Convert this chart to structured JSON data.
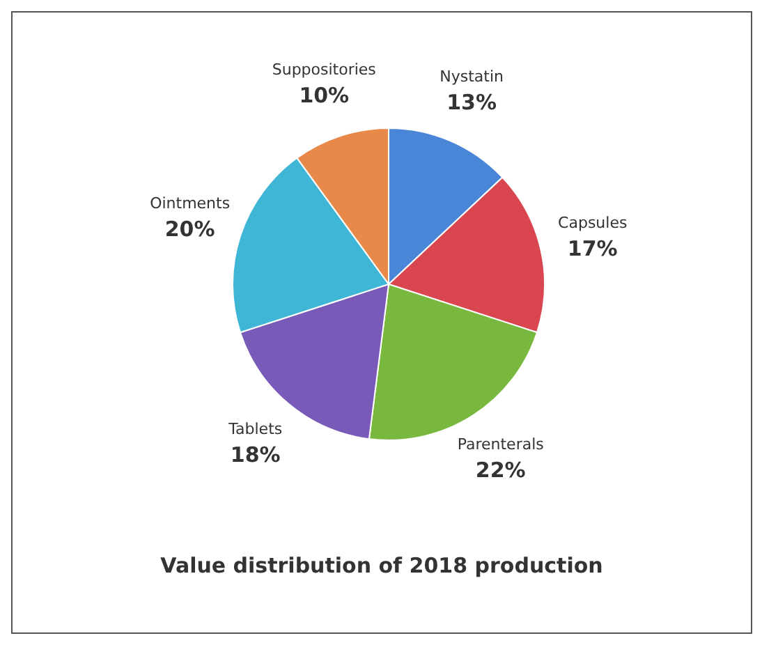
{
  "chart_data": {
    "type": "pie",
    "title": "Value distribution of 2018 production",
    "categories": [
      "Nystatin",
      "Capsules",
      "Parenterals",
      "Tablets",
      "Ointments",
      "Suppositories"
    ],
    "values": [
      13,
      17,
      22,
      18,
      20,
      10
    ],
    "value_labels": [
      "13%",
      "17%",
      "22%",
      "18%",
      "20%",
      "10%"
    ],
    "colors": [
      "#4a86d8",
      "#d9464f",
      "#78b83e",
      "#7a5ab8",
      "#3fb6d6",
      "#e8894a"
    ]
  }
}
